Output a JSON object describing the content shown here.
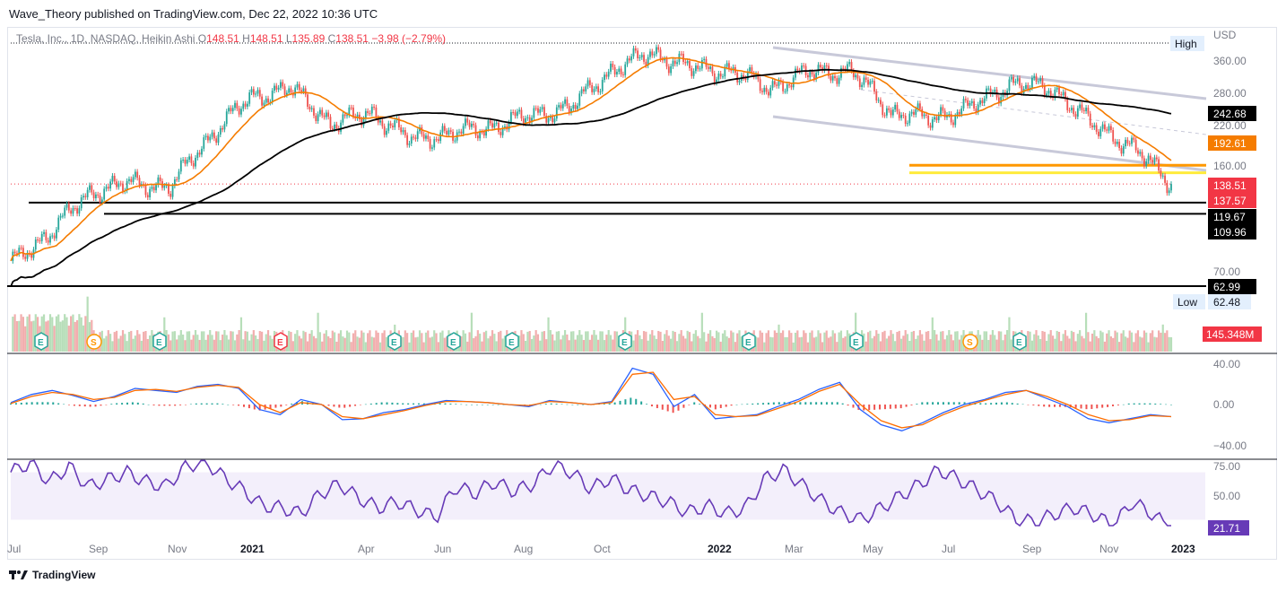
{
  "publisher_line": "Wave_Theory published on TradingView.com, Dec 22, 2022 10:36 UTC",
  "legend": {
    "symbol": "Tesla, Inc., 1D, NASDAQ, Heikin Ashi",
    "o_label": "O",
    "o": "148.51",
    "h_label": "H",
    "h": "148.51",
    "l_label": "L",
    "l": "135.89",
    "c_label": "C",
    "c": "138.51",
    "change": "−3.98 (−2.79%)"
  },
  "currency": "USD",
  "high_label": "High",
  "low_label": "Low",
  "low_value": "62.48",
  "footer_brand": "TradingView",
  "colors": {
    "up": "#26a69a",
    "down": "#ef5350",
    "ema_short": "#f57c00",
    "sma_long": "#000000",
    "channel": "#c8c9d9",
    "orange_level": "#ff9800",
    "yellow_level": "#ffeb3b",
    "macd": "#2962ff",
    "signal": "#ff6d00",
    "rsi": "#673ab7",
    "rsi_band": "#f3effb",
    "price_badge": "#f23645"
  },
  "chart_data": [
    {
      "type": "candlestick",
      "title": "Tesla, Inc., 1D, NASDAQ, Heikin Ashi",
      "y_scale": "log",
      "price_ticks": [
        "360.00",
        "280.00",
        "220.00",
        "160.00",
        "70.00"
      ],
      "x_ticks": [
        "Jul",
        "Sep",
        "Nov",
        "2021",
        "Apr",
        "Jun",
        "Aug",
        "Oct",
        "2022",
        "Mar",
        "May",
        "Jul",
        "Sep",
        "Nov",
        "2023"
      ],
      "close_path": [
        [
          "Jul 2020",
          75
        ],
        [
          "Aug 2020",
          95
        ],
        [
          "Sep 2020",
          130
        ],
        [
          "Oct 2020",
          140
        ],
        [
          "Nov 2020",
          135
        ],
        [
          "Dec 2020",
          200
        ],
        [
          "Jan 2021",
          270
        ],
        [
          "Feb 2021",
          290
        ],
        [
          "Mar 2021",
          220
        ],
        [
          "Apr 2021",
          240
        ],
        [
          "May 2021",
          195
        ],
        [
          "Jun 2021",
          205
        ],
        [
          "Jul 2021",
          215
        ],
        [
          "Aug 2021",
          235
        ],
        [
          "Sep 2021",
          250
        ],
        [
          "Oct 2021",
          330
        ],
        [
          "Nov 2021",
          380
        ],
        [
          "Dec 2021",
          340
        ],
        [
          "Jan 2022",
          330
        ],
        [
          "Feb 2022",
          290
        ],
        [
          "Mar 2022",
          330
        ],
        [
          "Apr 2022",
          330
        ],
        [
          "May 2022",
          240
        ],
        [
          "Jun 2022",
          230
        ],
        [
          "Jul 2022",
          250
        ],
        [
          "Aug 2022",
          300
        ],
        [
          "Sep 2022",
          290
        ],
        [
          "Oct 2022",
          220
        ],
        [
          "Nov 2022",
          185
        ],
        [
          "Dec 2022",
          138.51
        ]
      ],
      "price_labels": [
        {
          "value": "242.68",
          "color": "#000000"
        },
        {
          "value": "192.61",
          "color": "#f57c00"
        },
        {
          "value": "138.51",
          "color": "#f23645"
        },
        {
          "value": "137.57",
          "color": "#f23645"
        },
        {
          "value": "119.67",
          "color": "#000000"
        },
        {
          "value": "109.96",
          "color": "#000000"
        },
        {
          "value": "62.99",
          "color": "#000000"
        }
      ],
      "horizontal_levels": [
        {
          "value": 160,
          "color": "#ff9800"
        },
        {
          "value": 151,
          "color": "#ffeb3b"
        },
        {
          "value": 120,
          "color": "#000000"
        },
        {
          "value": 110,
          "color": "#000000"
        },
        {
          "value": 63,
          "color": "#000000"
        }
      ],
      "earnings_markers": [
        "E",
        "S",
        "E",
        "E",
        "E",
        "E",
        "E",
        "E",
        "E",
        "E",
        "S",
        "E"
      ],
      "volume_label": "145.348M"
    },
    {
      "type": "line",
      "title": "MACD",
      "y_ticks": [
        "40.00",
        "0.00",
        "−40.00"
      ],
      "series": [
        {
          "values": [
            2,
            10,
            14,
            9,
            3,
            8,
            16,
            14,
            12,
            18,
            20,
            16,
            -5,
            -10,
            5,
            0,
            -15,
            -14,
            -8,
            -5,
            0,
            4,
            3,
            2,
            0,
            -2,
            4,
            2,
            0,
            3,
            36,
            30,
            -2,
            10,
            -14,
            -12,
            -10,
            -2,
            5,
            15,
            22,
            -5,
            -20,
            -26,
            -18,
            -8,
            0,
            5,
            12,
            14,
            6,
            -2,
            -14,
            -18,
            -14,
            -10,
            -12
          ]
        },
        {
          "values": [
            1,
            8,
            12,
            10,
            5,
            7,
            14,
            15,
            13,
            17,
            19,
            17,
            0,
            -8,
            2,
            0,
            -12,
            -14,
            -10,
            -6,
            -1,
            3,
            3,
            2,
            0,
            -1,
            3,
            2,
            0,
            2,
            30,
            32,
            5,
            8,
            -10,
            -12,
            -11,
            -4,
            3,
            13,
            20,
            0,
            -16,
            -23,
            -20,
            -10,
            -2,
            4,
            10,
            14,
            8,
            0,
            -10,
            -16,
            -15,
            -11,
            -12
          ]
        }
      ]
    },
    {
      "type": "line",
      "title": "RSI",
      "y_ticks": [
        "75.00",
        "50.00"
      ],
      "last_value": "21.71",
      "series": [
        {
          "values": [
            70,
            78,
            62,
            75,
            58,
            64,
            70,
            62,
            58,
            74,
            80,
            66,
            55,
            42,
            40,
            35,
            52,
            60,
            48,
            40,
            45,
            38,
            32,
            58,
            52,
            62,
            54,
            60,
            76,
            70,
            56,
            65,
            55,
            50,
            45,
            36,
            42,
            35,
            40,
            65,
            72,
            58,
            45,
            35,
            30,
            40,
            50,
            60,
            72,
            64,
            55,
            45,
            30,
            28,
            35,
            40,
            34,
            25,
            45,
            35,
            22
          ]
        }
      ]
    }
  ]
}
